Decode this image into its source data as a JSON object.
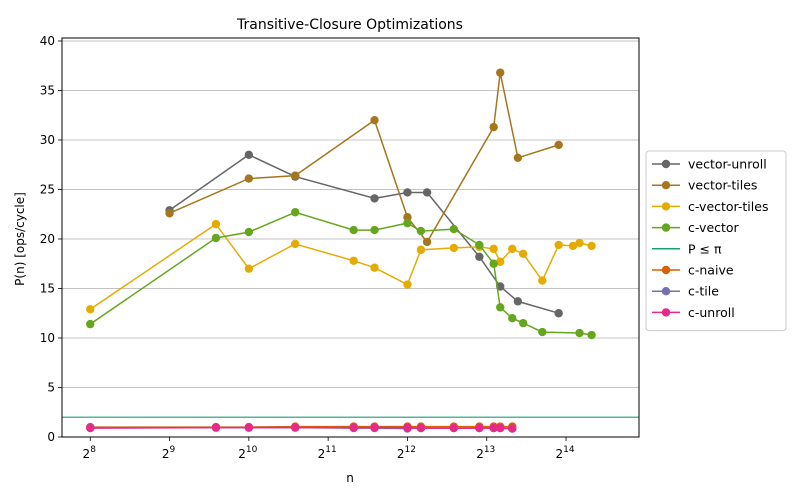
{
  "chart_data": {
    "type": "line",
    "title": "Transitive-Closure Optimizations",
    "xlabel": "n",
    "ylabel": "P(n) [ops/cycle]",
    "x_scale": "log2",
    "xlim": [
      200,
      31000
    ],
    "ylim": [
      0,
      40.3
    ],
    "x_ticks": [
      {
        "value": 256,
        "base": "2",
        "exp": "8"
      },
      {
        "value": 512,
        "base": "2",
        "exp": "9"
      },
      {
        "value": 1024,
        "base": "2",
        "exp": "10"
      },
      {
        "value": 2048,
        "base": "2",
        "exp": "11"
      },
      {
        "value": 4096,
        "base": "2",
        "exp": "12"
      },
      {
        "value": 8192,
        "base": "2",
        "exp": "13"
      },
      {
        "value": 16384,
        "base": "2",
        "exp": "14"
      }
    ],
    "y_ticks": [
      0,
      5,
      10,
      15,
      20,
      25,
      30,
      35,
      40
    ],
    "grid": "y",
    "legend_position": "outside-right",
    "series": [
      {
        "name": "vector-unroll",
        "color": "#666666",
        "marker": "circle",
        "points": [
          [
            512,
            22.9
          ],
          [
            1024,
            28.5
          ],
          [
            1536,
            26.3
          ],
          [
            3072,
            24.1
          ],
          [
            4096,
            24.7
          ],
          [
            4864,
            24.7
          ],
          [
            7680,
            18.2
          ],
          [
            9216,
            15.2
          ],
          [
            10752,
            13.7
          ],
          [
            15360,
            12.5
          ]
        ]
      },
      {
        "name": "vector-tiles",
        "color": "#a6761d",
        "marker": "circle",
        "points": [
          [
            512,
            22.6
          ],
          [
            1024,
            26.1
          ],
          [
            1536,
            26.4
          ],
          [
            3072,
            32.0
          ],
          [
            4096,
            22.2
          ],
          [
            4864,
            19.7
          ],
          [
            8704,
            31.3
          ],
          [
            9216,
            36.8
          ],
          [
            10752,
            28.2
          ],
          [
            15360,
            29.5
          ]
        ]
      },
      {
        "name": "c-vector-tiles",
        "color": "#e6ab02",
        "marker": "circle",
        "points": [
          [
            256,
            12.9
          ],
          [
            768,
            21.5
          ],
          [
            1024,
            17.0
          ],
          [
            1536,
            19.5
          ],
          [
            2560,
            17.8
          ],
          [
            3072,
            17.1
          ],
          [
            4096,
            15.4
          ],
          [
            4608,
            18.9
          ],
          [
            6144,
            19.1
          ],
          [
            7680,
            19.2
          ],
          [
            8704,
            19.0
          ],
          [
            9216,
            17.7
          ],
          [
            10240,
            19.0
          ],
          [
            11264,
            18.5
          ],
          [
            13312,
            15.8
          ],
          [
            15360,
            19.4
          ],
          [
            17408,
            19.3
          ],
          [
            18432,
            19.6
          ],
          [
            20480,
            19.3
          ]
        ]
      },
      {
        "name": "c-vector",
        "color": "#66a61e",
        "marker": "circle",
        "points": [
          [
            256,
            11.4
          ],
          [
            768,
            20.1
          ],
          [
            1024,
            20.7
          ],
          [
            1536,
            22.7
          ],
          [
            2560,
            20.9
          ],
          [
            3072,
            20.9
          ],
          [
            4096,
            21.6
          ],
          [
            4608,
            20.8
          ],
          [
            6144,
            21.0
          ],
          [
            7680,
            19.4
          ],
          [
            8704,
            17.5
          ],
          [
            9216,
            13.1
          ],
          [
            10240,
            12.0
          ],
          [
            11264,
            11.5
          ],
          [
            13312,
            10.6
          ],
          [
            18432,
            10.5
          ],
          [
            20480,
            10.3
          ]
        ]
      },
      {
        "name": "P ≤ π",
        "color": "#1b9e77",
        "marker": "none",
        "hline": 2
      },
      {
        "name": "c-naive",
        "color": "#d95f02",
        "marker": "circle",
        "points": [
          [
            256,
            1.0
          ],
          [
            768,
            1.0
          ],
          [
            1024,
            1.0
          ],
          [
            1536,
            1.05
          ],
          [
            2560,
            1.05
          ],
          [
            3072,
            1.05
          ],
          [
            4096,
            1.05
          ],
          [
            4608,
            1.05
          ],
          [
            6144,
            1.05
          ],
          [
            7680,
            1.05
          ],
          [
            8704,
            1.05
          ],
          [
            9216,
            1.05
          ],
          [
            10240,
            1.05
          ]
        ]
      },
      {
        "name": "c-tile",
        "color": "#7570b3",
        "marker": "circle",
        "points": [
          [
            256,
            0.95
          ],
          [
            768,
            0.95
          ],
          [
            1024,
            0.95
          ],
          [
            1536,
            0.95
          ],
          [
            2560,
            0.9
          ],
          [
            3072,
            0.9
          ],
          [
            4096,
            0.85
          ],
          [
            4608,
            0.9
          ],
          [
            6144,
            0.9
          ],
          [
            7680,
            0.9
          ],
          [
            8704,
            0.9
          ],
          [
            9216,
            0.9
          ],
          [
            10240,
            0.85
          ]
        ]
      },
      {
        "name": "c-unroll",
        "color": "#e7298a",
        "marker": "circle",
        "points": [
          [
            256,
            0.9
          ],
          [
            768,
            0.95
          ],
          [
            1024,
            0.95
          ],
          [
            1536,
            0.95
          ],
          [
            2560,
            0.95
          ],
          [
            3072,
            0.95
          ],
          [
            4096,
            0.95
          ],
          [
            4608,
            0.9
          ],
          [
            6144,
            0.9
          ],
          [
            7680,
            0.9
          ],
          [
            8704,
            0.9
          ],
          [
            9216,
            0.9
          ],
          [
            10240,
            0.85
          ]
        ]
      }
    ]
  }
}
